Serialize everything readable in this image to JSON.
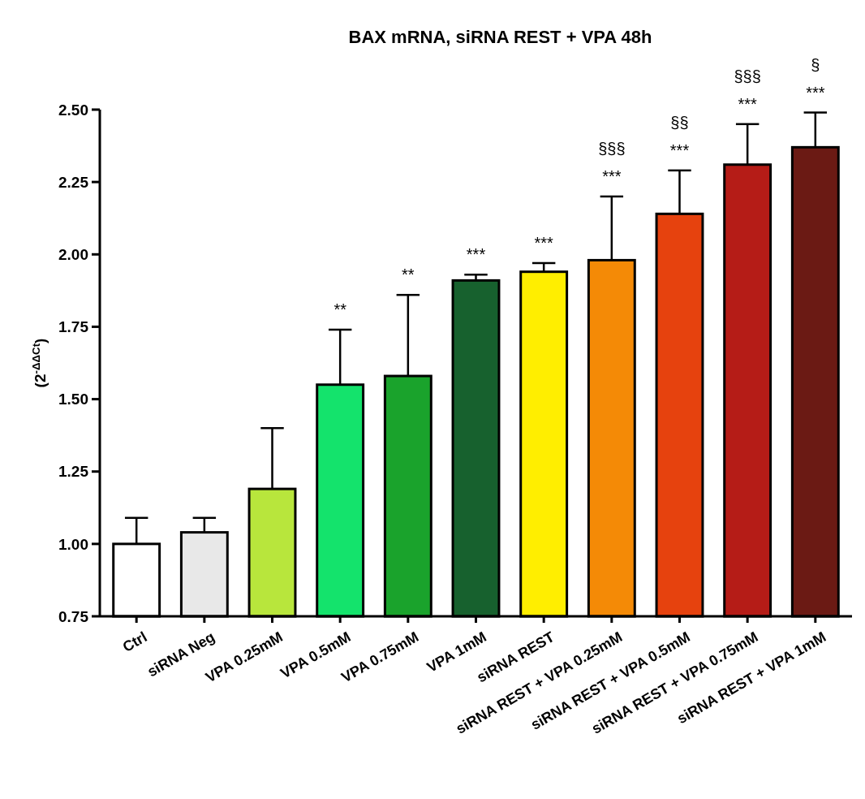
{
  "chart_data": {
    "type": "bar",
    "title": "BAX mRNA, siRNA REST + VPA 48h",
    "ylabel": "(2$^{-ΔΔCt}$)",
    "categories": [
      "Ctrl",
      "siRNA Neg",
      "VPA 0.25mM",
      "VPA 0.5mM",
      "VPA 0.75mM",
      "VPA 1mM",
      "siRNA REST",
      "siRNA REST + VPA 0.25mM",
      "siRNA REST + VPA 0.5mM",
      "siRNA REST + VPA 0.75mM",
      "siRNA REST + VPA 1mM"
    ],
    "values": [
      1.0,
      1.04,
      1.19,
      1.55,
      1.58,
      1.91,
      1.94,
      1.98,
      2.14,
      2.31,
      2.37
    ],
    "errors": [
      0.09,
      0.05,
      0.21,
      0.19,
      0.28,
      0.02,
      0.03,
      0.22,
      0.15,
      0.14,
      0.12
    ],
    "colors": [
      "#ffffff",
      "#e8e8e8",
      "#b8e63c",
      "#14e36c",
      "#1aa32c",
      "#17612e",
      "#ffee00",
      "#f48a06",
      "#e6420e",
      "#b51c17",
      "#6b1a14"
    ],
    "ylim": [
      0.75,
      2.5
    ],
    "yticks": [
      {
        "value": 0.75,
        "label": "0.75"
      },
      {
        "value": 1,
        "label": "1.00"
      },
      {
        "value": 1.25,
        "label": "1.25"
      },
      {
        "value": 1.5,
        "label": "1.50"
      },
      {
        "value": 1.75,
        "label": "1.75"
      },
      {
        "value": 2,
        "label": "2.00"
      },
      {
        "value": 2.25,
        "label": "2.25"
      },
      {
        "value": 2.5,
        "label": "2.50"
      }
    ],
    "grid": false,
    "annotations": [
      "**",
      "**",
      "***",
      "***",
      "***",
      "§§§",
      "***",
      "§§",
      "***",
      "§§§",
      "***",
      "§"
    ]
  }
}
